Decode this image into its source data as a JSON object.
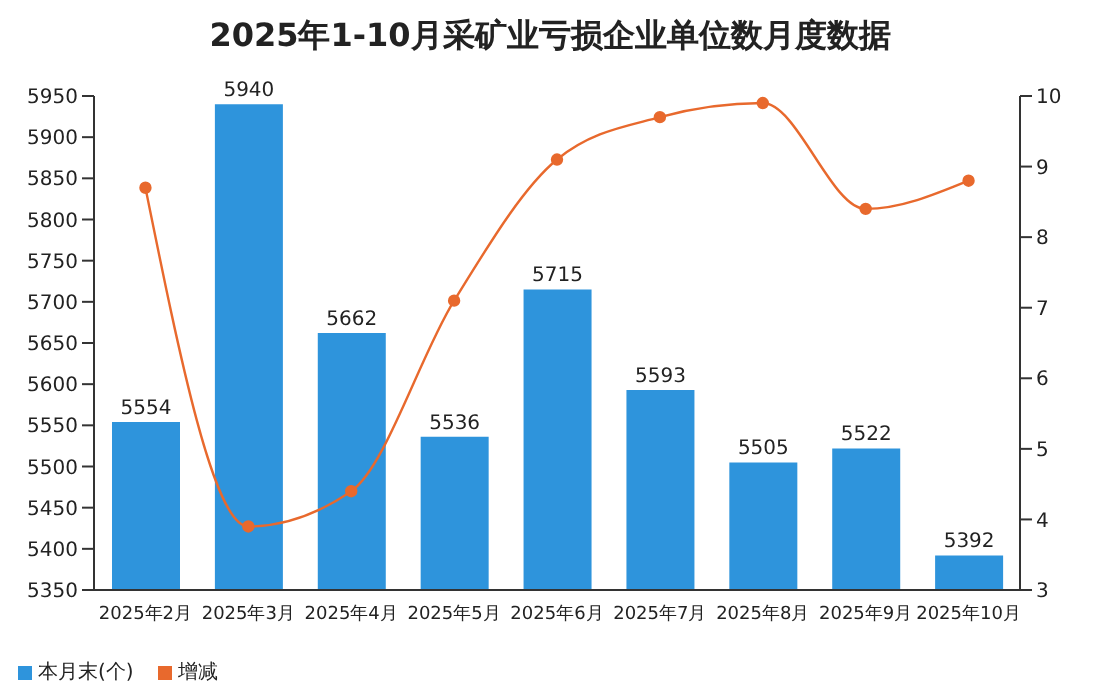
{
  "chart_data": {
    "type": "bar",
    "title": "2025年1-10月采矿业亏损企业单位数月度数据",
    "categories": [
      "2025年2月",
      "2025年3月",
      "2025年4月",
      "2025年5月",
      "2025年6月",
      "2025年7月",
      "2025年8月",
      "2025年9月",
      "2025年10月"
    ],
    "series": [
      {
        "name": "本月末(个)",
        "color": "#2e94dc",
        "values": [
          5554,
          5940,
          5662,
          5536,
          5715,
          5593,
          5505,
          5522,
          5392
        ],
        "value_labels": [
          "5554",
          "5940",
          "5662",
          "5536",
          "5715",
          "5593",
          "5505",
          "5522",
          "5392"
        ]
      },
      {
        "name": "增减",
        "type": "line",
        "axis": "y2",
        "color": "#e8692d",
        "values": [
          8.7,
          3.9,
          4.4,
          7.1,
          9.1,
          9.7,
          9.9,
          8.4,
          8.8
        ]
      }
    ],
    "ylim": [
      5350,
      5950
    ],
    "yticks": [
      5350,
      5400,
      5450,
      5500,
      5550,
      5600,
      5650,
      5700,
      5750,
      5800,
      5850,
      5900,
      5950
    ],
    "y2lim": [
      3,
      10
    ],
    "y2ticks": [
      3,
      4,
      5,
      6,
      7,
      8,
      9,
      10
    ],
    "marker": "circle",
    "legend": "bottom left"
  }
}
